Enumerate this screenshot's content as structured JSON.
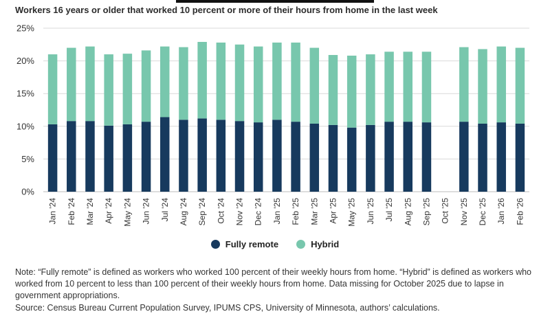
{
  "subtitle": "Workers 16 years or older that worked 10 percent or more of their hours from home in the last week",
  "legend": {
    "fully_remote": "Fully remote",
    "hybrid": "Hybrid"
  },
  "note": "Note: “Fully remote” is defined as workers who worked 100 percent of their weekly hours from home. “Hybrid” is defined as workers who worked from 10 percent to less than 100 percent of their weekly hours from home. Data missing for October 2025 due to lapse in government appropriations.",
  "source": "Source: Census Bureau Current Population Survey, IPUMS CPS, University of Minnesota, authors’ calculations.",
  "colors": {
    "fully_remote": "#173a5e",
    "hybrid": "#78c7ad",
    "grid": "#d9d9d9",
    "axis_text": "#333333"
  },
  "chart_data": {
    "type": "bar",
    "stacked": true,
    "categories": [
      "Jan '24",
      "Feb '24",
      "Mar '24",
      "Apr '24",
      "May '24",
      "Jun '24",
      "Jul '24",
      "Aug '24",
      "Sep '24",
      "Oct '24",
      "Nov '24",
      "Dec '24",
      "Jan '25",
      "Feb '25",
      "Mar '25",
      "Apr '25",
      "May '25",
      "Jun '25",
      "Jul '25",
      "Aug '25",
      "Sep '25",
      "Oct '25",
      "Nov '25",
      "Dec '25",
      "Jan '26",
      "Feb '26"
    ],
    "series": [
      {
        "name": "Fully remote",
        "values": [
          10.3,
          10.8,
          10.8,
          10.1,
          10.3,
          10.7,
          11.4,
          11.0,
          11.2,
          11.0,
          10.8,
          10.6,
          11.0,
          10.7,
          10.4,
          10.2,
          9.8,
          10.2,
          10.7,
          10.7,
          10.6,
          null,
          10.7,
          10.4,
          10.6,
          10.4
        ]
      },
      {
        "name": "Hybrid",
        "values": [
          10.7,
          11.2,
          11.4,
          10.9,
          10.8,
          10.9,
          10.8,
          11.1,
          11.7,
          11.8,
          11.7,
          11.6,
          11.8,
          12.1,
          11.6,
          10.7,
          11.0,
          10.8,
          10.7,
          10.7,
          10.8,
          null,
          11.4,
          11.4,
          11.6,
          11.6
        ]
      }
    ],
    "y_ticks": [
      "0%",
      "5%",
      "10%",
      "15%",
      "20%",
      "25%"
    ],
    "ylim": [
      0,
      25
    ],
    "grid": true,
    "legend_position": "bottom"
  }
}
